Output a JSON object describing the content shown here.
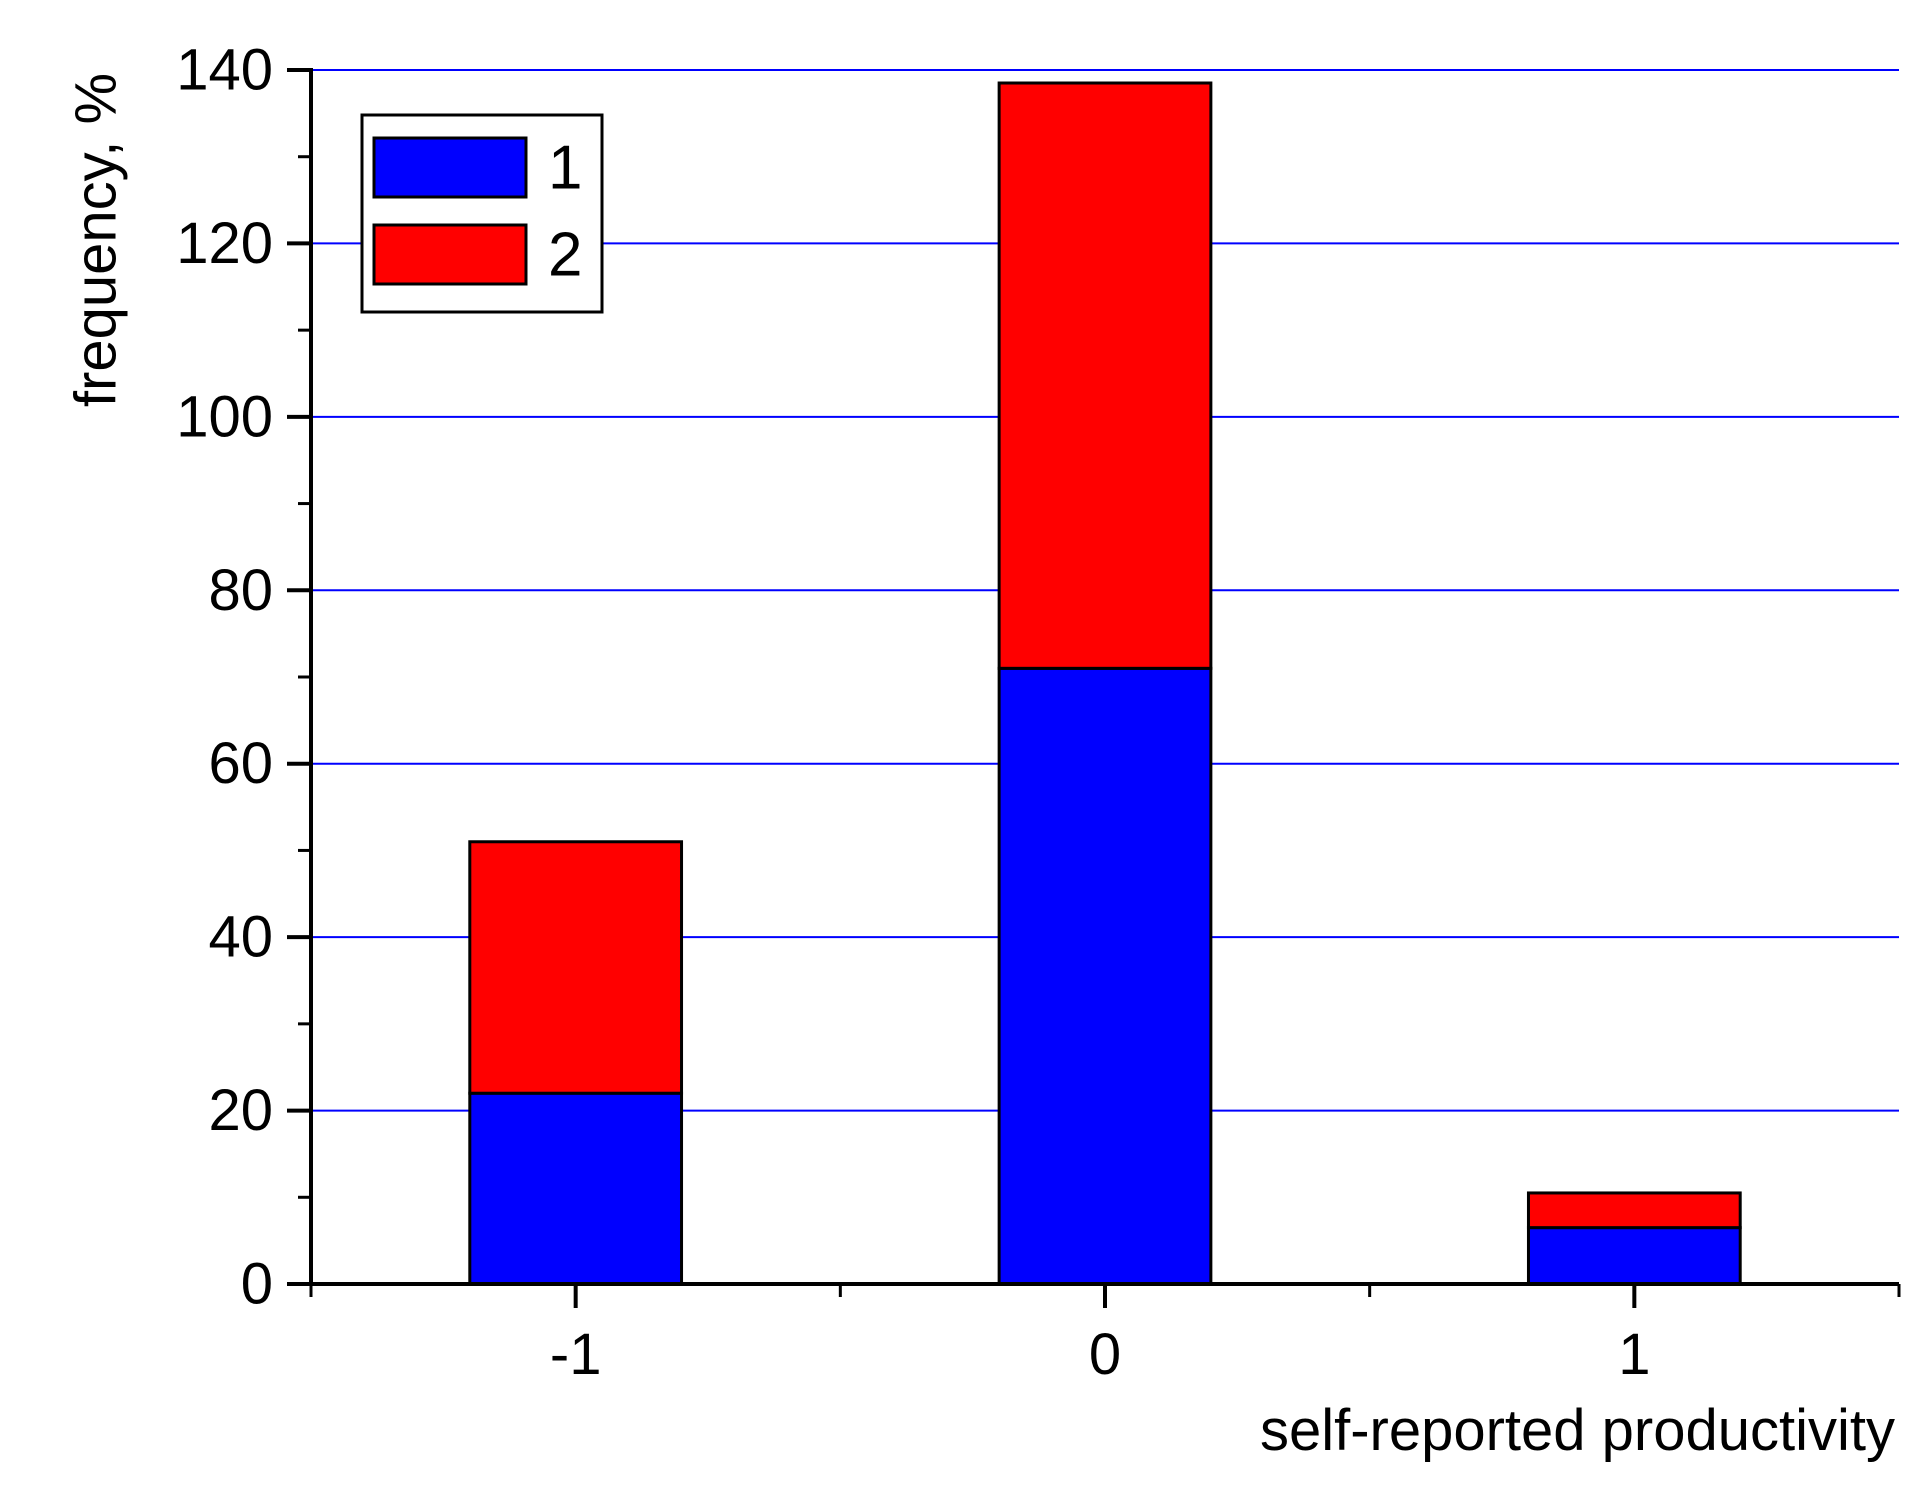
{
  "chart_data": {
    "type": "bar",
    "stacked": true,
    "categories": [
      "-1",
      "0",
      "1"
    ],
    "series": [
      {
        "name": "1",
        "color": "#0000ff",
        "values": [
          22,
          71,
          6.5
        ]
      },
      {
        "name": "2",
        "color": "#ff0000",
        "values": [
          29,
          67.5,
          4
        ]
      }
    ],
    "title": "",
    "xlabel": "self-reported productivity",
    "ylabel": "frequency, %",
    "ylim": [
      0,
      140
    ],
    "y_ticks": [
      "0",
      "20",
      "40",
      "60",
      "80",
      "100",
      "120",
      "140"
    ],
    "y_tick_values": [
      0,
      20,
      40,
      60,
      80,
      100,
      120,
      140
    ],
    "x_ticks": [
      "-1",
      "0",
      "1"
    ],
    "x_tick_values": [
      -1,
      0,
      1
    ],
    "xlim": [
      -1.5,
      1.5
    ],
    "bar_width": 0.4,
    "grid": "horizontal",
    "grid_color": "#0000ff",
    "legend_position": "top-left"
  }
}
